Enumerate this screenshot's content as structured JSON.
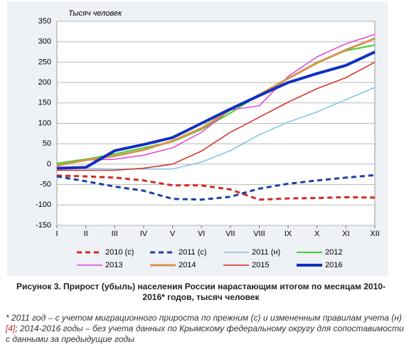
{
  "chart_data": {
    "type": "line",
    "title": "Тысяч человек",
    "categories": [
      "I",
      "II",
      "III",
      "IV",
      "V",
      "VI",
      "VII",
      "VIII",
      "IX",
      "X",
      "XI",
      "XII"
    ],
    "ylim": [
      -150,
      350
    ],
    "yticks": [
      -150,
      -100,
      -50,
      0,
      50,
      100,
      150,
      200,
      250,
      300,
      350
    ],
    "grid": true,
    "series": [
      {
        "name": "2010 (с)",
        "color": "#d42a1e",
        "dashed": true,
        "linewidth": 3,
        "values": [
          -28,
          -30,
          -33,
          -40,
          -52,
          -52,
          -62,
          -87,
          -84,
          -83,
          -81,
          -82
        ]
      },
      {
        "name": "2011 (с)",
        "color": "#1f3ea8",
        "dashed": true,
        "linewidth": 3,
        "values": [
          -30,
          -42,
          -55,
          -65,
          -85,
          -87,
          -80,
          -60,
          -48,
          -40,
          -33,
          -27
        ]
      },
      {
        "name": "2011 (н)",
        "color": "#7cc4e8",
        "linewidth": 1.5,
        "values": [
          -10,
          -10,
          -12,
          -12,
          -12,
          5,
          33,
          72,
          103,
          128,
          158,
          188
        ]
      },
      {
        "name": "2012",
        "color": "#3ccf2c",
        "linewidth": 2,
        "values": [
          2,
          12,
          25,
          40,
          55,
          85,
          125,
          170,
          210,
          250,
          278,
          292
        ]
      },
      {
        "name": "2013",
        "color": "#e040d8",
        "linewidth": 1.5,
        "values": [
          -5,
          10,
          12,
          22,
          40,
          78,
          133,
          143,
          215,
          263,
          295,
          318
        ]
      },
      {
        "name": "2014",
        "color": "#d6944a",
        "linewidth": 3,
        "values": [
          -3,
          10,
          20,
          35,
          57,
          88,
          133,
          170,
          210,
          248,
          280,
          308
        ]
      },
      {
        "name": "2015",
        "color": "#d42a1e",
        "linewidth": 1.5,
        "values": [
          -15,
          -15,
          -15,
          -10,
          0,
          32,
          78,
          115,
          152,
          185,
          212,
          250
        ]
      },
      {
        "name": "2016",
        "color": "#1030c0",
        "linewidth": 4,
        "values": [
          -10,
          -8,
          33,
          48,
          65,
          100,
          135,
          168,
          200,
          222,
          242,
          275
        ]
      }
    ]
  },
  "caption": "Рисунок 3. Прирост (убыль) населения России нарастающим итогом по месяцам 2010-2016* годов, тысяч человек",
  "footnote": {
    "before": "* 2011 год – с учетом миграционного прироста по прежним (с) и измененным правилам учета (н)",
    "link": "[4]",
    "after": "; 2014-2016 годы – без учета данных по Крымскому федеральному округу для сопоставимости с данными за предыдущие годы"
  }
}
